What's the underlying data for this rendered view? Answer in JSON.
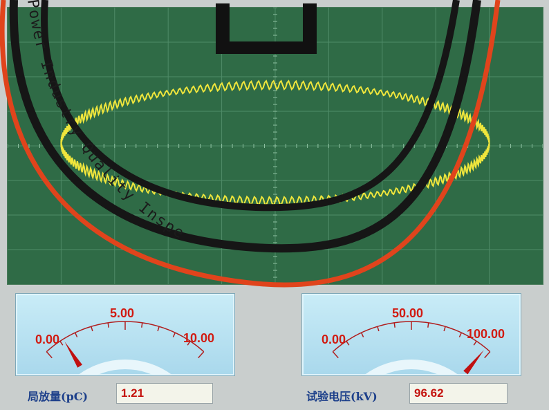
{
  "scope": {
    "colors": {
      "background": "#2f6b46",
      "grid": "#4f8c68",
      "trace": "#f0e63c"
    }
  },
  "meters": {
    "left": {
      "labels": {
        "min": "0.00",
        "mid": "5.00",
        "max": "10.00"
      },
      "value": 1.21,
      "range": [
        0,
        10
      ]
    },
    "right": {
      "labels": {
        "min": "0.00",
        "mid": "50.00",
        "max": "100.00"
      },
      "value": 96.62,
      "range": [
        0,
        100
      ]
    }
  },
  "fields": {
    "pd": {
      "label": "局放量(pC)",
      "value": "1.21"
    },
    "voltage": {
      "label": "试验电压(kV)",
      "value": "96.62"
    }
  },
  "watermark": {
    "text": "Power Industry Quality Inspe",
    "color": "#1b1b1b"
  }
}
